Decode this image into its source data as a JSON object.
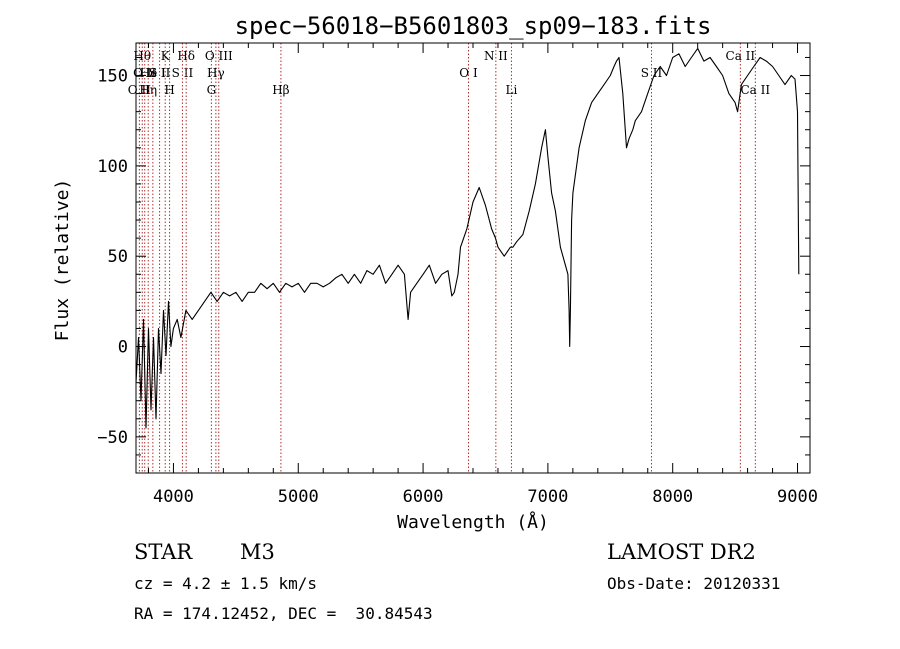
{
  "chart_data": {
    "type": "line",
    "title": "spec−56018−B5601803_sp09−183.fits",
    "xlabel": "Wavelength (Å)",
    "ylabel": "Flux (relative)",
    "xlim": [
      3700,
      9100
    ],
    "ylim": [
      -70,
      168
    ],
    "x_ticks": [
      4000,
      5000,
      6000,
      7000,
      8000,
      9000
    ],
    "y_ticks": [
      -50,
      0,
      50,
      100,
      150
    ],
    "grid": false,
    "line_color": "#000000",
    "marker_line_color": "#b03030",
    "series": [
      {
        "x": [
          3700,
          3720,
          3740,
          3760,
          3780,
          3800,
          3820,
          3840,
          3860,
          3880,
          3900,
          3920,
          3940,
          3960,
          3980,
          4000,
          4030,
          4060,
          4100,
          4150,
          4200,
          4250,
          4300,
          4350,
          4400,
          4450,
          4500,
          4550,
          4600,
          4650,
          4700,
          4750,
          4800,
          4850,
          4900,
          4950,
          5000,
          5050,
          5100,
          5150,
          5200,
          5250,
          5300,
          5350,
          5400,
          5450,
          5500,
          5550,
          5600,
          5650,
          5700,
          5750,
          5800,
          5850,
          5880,
          5900,
          5950,
          6000,
          6050,
          6100,
          6150,
          6200,
          6230,
          6250,
          6280,
          6300,
          6350,
          6400,
          6450,
          6500,
          6550,
          6580,
          6600,
          6620,
          6650,
          6700,
          6720,
          6750,
          6800,
          6850,
          6900,
          6950,
          6980,
          7000,
          7030,
          7060,
          7080,
          7100,
          7120,
          7140,
          7160,
          7170,
          7175,
          7180,
          7190,
          7200,
          7250,
          7300,
          7350,
          7400,
          7450,
          7500,
          7530,
          7550,
          7570,
          7600,
          7630,
          7650,
          7680,
          7700,
          7750,
          7800,
          7850,
          7900,
          7950,
          8000,
          8050,
          8100,
          8150,
          8200,
          8250,
          8300,
          8350,
          8400,
          8450,
          8500,
          8520,
          8550,
          8600,
          8650,
          8700,
          8750,
          8800,
          8850,
          8900,
          8950,
          8980,
          9000,
          9010
        ],
        "y": [
          -20,
          5,
          -30,
          15,
          -45,
          10,
          -35,
          5,
          -40,
          10,
          -15,
          20,
          -5,
          25,
          0,
          10,
          15,
          5,
          20,
          15,
          20,
          25,
          30,
          25,
          30,
          28,
          30,
          25,
          30,
          30,
          35,
          32,
          35,
          30,
          35,
          33,
          35,
          30,
          35,
          35,
          33,
          35,
          38,
          40,
          35,
          40,
          35,
          42,
          40,
          45,
          35,
          40,
          45,
          40,
          15,
          30,
          35,
          40,
          45,
          35,
          40,
          42,
          28,
          30,
          40,
          55,
          65,
          80,
          88,
          78,
          65,
          60,
          55,
          53,
          50,
          55,
          55,
          58,
          62,
          75,
          90,
          110,
          120,
          105,
          85,
          75,
          65,
          55,
          50,
          45,
          40,
          20,
          0,
          20,
          70,
          85,
          110,
          125,
          135,
          140,
          145,
          150,
          155,
          158,
          160,
          140,
          110,
          115,
          120,
          125,
          130,
          140,
          150,
          155,
          150,
          160,
          162,
          155,
          160,
          165,
          158,
          160,
          155,
          150,
          140,
          135,
          130,
          145,
          150,
          155,
          160,
          158,
          155,
          150,
          145,
          150,
          148,
          130,
          40
        ]
      }
    ],
    "marker_lines": [
      {
        "x": 3727,
        "labels": [
          "O II"
        ],
        "row": 2
      },
      {
        "x": 3750,
        "labels": [
          "Hθ"
        ],
        "row": 0
      },
      {
        "x": 3770,
        "labels": [
          "O II"
        ],
        "row": 1
      },
      {
        "x": 3798,
        "labels": [
          "Hη"
        ],
        "row": 2
      },
      {
        "x": 3835,
        "labels": [
          "He I"
        ],
        "row": 1
      },
      {
        "x": 3889,
        "labels": [
          "S II"
        ],
        "row": 1
      },
      {
        "x": 3934,
        "labels": [
          "K"
        ],
        "row": 0
      },
      {
        "x": 3969,
        "labels": [
          "H"
        ],
        "row": 2
      },
      {
        "x": 4072,
        "labels": [
          "S II"
        ],
        "row": 1
      },
      {
        "x": 4102,
        "labels": [
          "Hδ"
        ],
        "row": 0
      },
      {
        "x": 4304,
        "labels": [
          "G"
        ],
        "row": 2
      },
      {
        "x": 4340,
        "labels": [
          "Hγ"
        ],
        "row": 1
      },
      {
        "x": 4363,
        "labels": [
          "O III"
        ],
        "row": 0
      },
      {
        "x": 4861,
        "labels": [
          "Hβ"
        ],
        "row": 2
      },
      {
        "x": 6364,
        "labels": [
          "O I"
        ],
        "row": 1
      },
      {
        "x": 6583,
        "labels": [
          "N II"
        ],
        "row": 0
      },
      {
        "x": 6708,
        "labels": [
          "Li"
        ],
        "row": 2
      },
      {
        "x": 7830,
        "labels": [
          "S II"
        ],
        "row": 1
      },
      {
        "x": 8542,
        "labels": [
          "Ca II"
        ],
        "row": 0
      },
      {
        "x": 8662,
        "labels": [
          "Ca II"
        ],
        "row": 2
      }
    ]
  },
  "info": {
    "object_class": "STAR",
    "subclass": "M3",
    "survey": "LAMOST DR2",
    "cz": "cz = 4.2 ± 1.5 km/s",
    "obs_date": "Obs-Date: 20120331",
    "coords": "RA = 174.12452, DEC =  30.84543"
  }
}
